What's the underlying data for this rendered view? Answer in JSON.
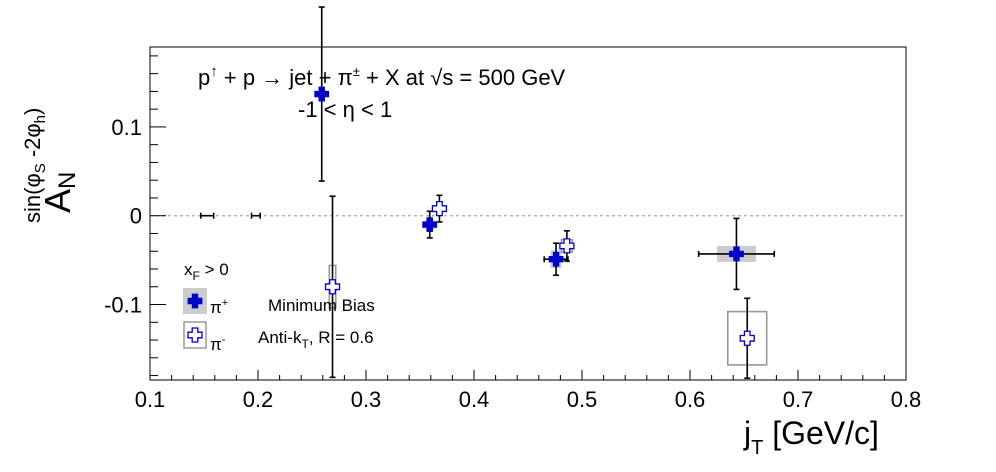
{
  "chart_data": {
    "type": "scatter",
    "title_parts": {
      "p": "p",
      "up": "↑",
      "reaction": " + p → jet + π",
      "pm": "±",
      "rest": " + X at  √s = 500 GeV"
    },
    "subtitle": "-1 < η < 1",
    "xlabel": {
      "main": "j",
      "sub": "T",
      "unit": " [GeV/c]"
    },
    "ylabel": {
      "main": "A",
      "sub": "N",
      "sup": "sin(φ",
      "sup_sub1": "S",
      "sup_mid": " -2φ",
      "sup_sub2": "h",
      "sup_end": ")"
    },
    "xlim": [
      0.1,
      0.8
    ],
    "ylim": [
      -0.185,
      0.19
    ],
    "x_ticks": [
      "0.1",
      "0.2",
      "0.3",
      "0.4",
      "0.5",
      "0.6",
      "0.7",
      "0.8"
    ],
    "y_ticks": [
      "-0.1",
      "0",
      "0.1"
    ],
    "zero_line": true,
    "colors": {
      "pi_plus": "#0000cc",
      "pi_minus": "#0000cc",
      "sys_plus": "#cccccc",
      "sys_minus": "#999999",
      "zero_line": "#aaaaaa"
    },
    "legend": {
      "header": {
        "main": "x",
        "sub": "F",
        "rest": " > 0"
      },
      "entries": [
        {
          "label_main": "π",
          "label_sup": "+",
          "note": "Minimum Bias"
        },
        {
          "label_main": "π",
          "label_sup": "-",
          "note": "Anti-k",
          "note_sub": "T",
          "note_rest": ", R = 0.6"
        }
      ]
    },
    "series": [
      {
        "marker": "filled-cross",
        "points": [
          {
            "x": 0.153,
            "y": 0.0,
            "xerr": 0.006,
            "yerr": 0.0
          },
          {
            "x": 0.198,
            "y": 0.0,
            "xerr": 0.004,
            "yerr": 0.0
          },
          {
            "x": 0.259,
            "y": 0.137,
            "xerr": 0.003,
            "yerr": 0.098,
            "sx": 0.0,
            "sy": 0.0
          },
          {
            "x": 0.359,
            "y": -0.01,
            "xerr": 0.006,
            "yerr": 0.015,
            "sx": 0.004,
            "sy": 0.006
          },
          {
            "x": 0.476,
            "y": -0.049,
            "xerr": 0.011,
            "yerr": 0.018,
            "sx": 0.005,
            "sy": 0.01
          },
          {
            "x": 0.643,
            "y": -0.043,
            "xerr": 0.035,
            "yerr": 0.04,
            "sx": 0.018,
            "sy": 0.009
          }
        ]
      },
      {
        "marker": "open-cross",
        "points": [
          {
            "x": 0.269,
            "y": -0.08,
            "xerr": 0.0,
            "yerr": 0.102,
            "sx": 0.003,
            "sy": 0.024
          },
          {
            "x": 0.368,
            "y": 0.008,
            "xerr": 0.003,
            "yerr": 0.015,
            "sx": 0.0,
            "sy": 0.0
          },
          {
            "x": 0.486,
            "y": -0.034,
            "xerr": 0.004,
            "yerr": 0.017,
            "sx": 0.005,
            "sy": 0.007
          },
          {
            "x": 0.653,
            "y": -0.138,
            "xerr": 0.0,
            "yerr": 0.045,
            "sx": 0.018,
            "sy": 0.03
          }
        ]
      }
    ]
  }
}
